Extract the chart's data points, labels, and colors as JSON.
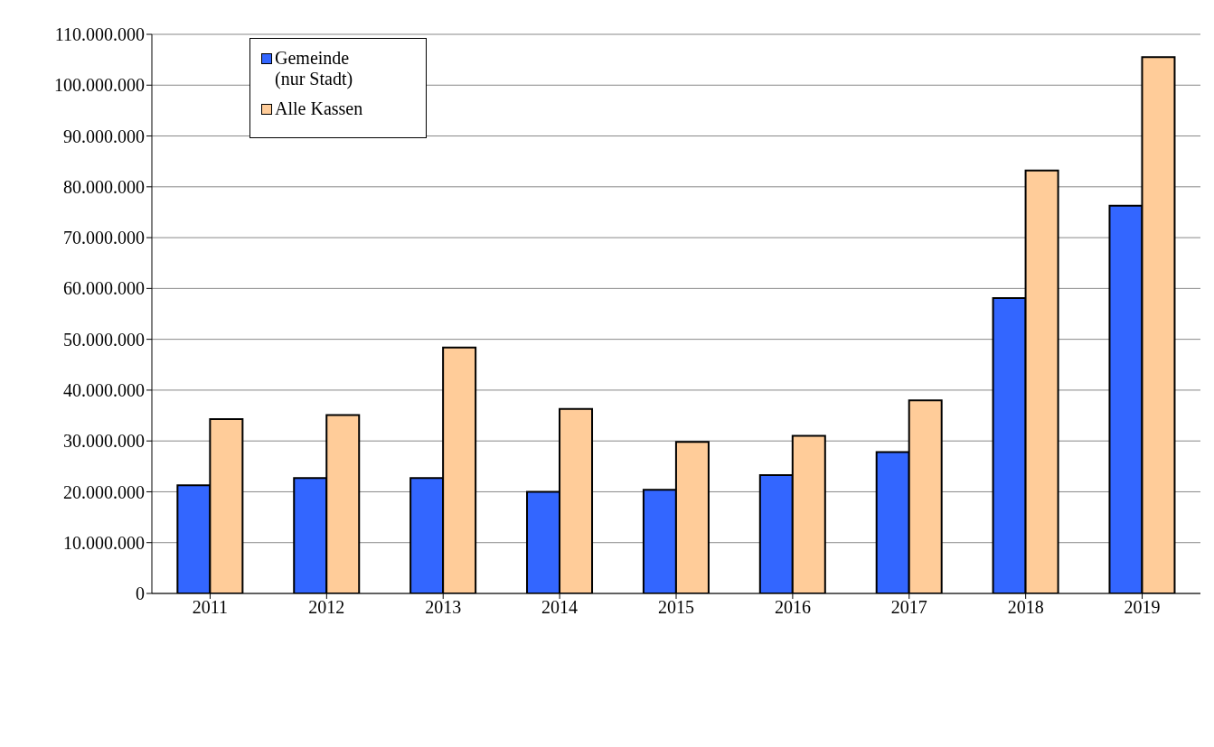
{
  "chart_data": {
    "type": "bar",
    "categories": [
      "2011",
      "2012",
      "2013",
      "2014",
      "2015",
      "2016",
      "2017",
      "2018",
      "2019"
    ],
    "series": [
      {
        "name": "Gemeinde (nur Stadt)",
        "color": "#3366ff",
        "values": [
          21300000,
          22700000,
          22700000,
          20000000,
          20400000,
          23300000,
          27800000,
          58100000,
          76300000
        ]
      },
      {
        "name": "Alle Kassen",
        "color": "#ffcc99",
        "values": [
          34300000,
          35100000,
          48400000,
          36300000,
          29800000,
          31000000,
          38000000,
          83200000,
          105500000
        ]
      }
    ],
    "ylim": [
      0,
      110000000
    ],
    "yticks": [
      0,
      {
        "value": 10000000,
        "label": "10.000.000"
      },
      {
        "value": 20000000,
        "label": "20.000.000"
      },
      {
        "value": 30000000,
        "label": "30.000.000"
      },
      {
        "value": 40000000,
        "label": "40.000.000"
      },
      {
        "value": 50000000,
        "label": "50.000.000"
      },
      {
        "value": 60000000,
        "label": "60.000.000"
      },
      {
        "value": 70000000,
        "label": "70.000.000"
      },
      {
        "value": 80000000,
        "label": "80.000.000"
      },
      {
        "value": 90000000,
        "label": "90.000.000"
      },
      {
        "value": 100000000,
        "label": "100.000.000"
      },
      {
        "value": 110000000,
        "label": "110.000.000"
      }
    ],
    "grid": "y",
    "legend": "top left"
  }
}
